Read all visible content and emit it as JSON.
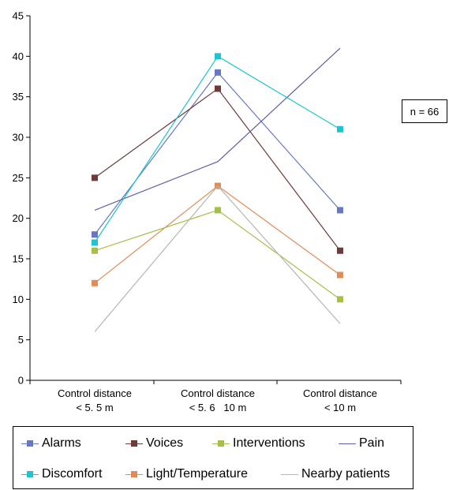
{
  "chart_data": {
    "type": "line",
    "categories": [
      [
        "Control distance",
        "< 5. 5 m"
      ],
      [
        "Control distance",
        "< 5. 6   10 m"
      ],
      [
        "Control distance",
        "< 10 m"
      ]
    ],
    "ylim": [
      0,
      45
    ],
    "yticks": [
      0,
      5,
      10,
      15,
      20,
      25,
      30,
      35,
      40,
      45
    ],
    "grid": false,
    "legend_position": "bottom",
    "annotation": "n = 66",
    "series": [
      {
        "name": "Alarms",
        "values": [
          18,
          38,
          21
        ],
        "color": "#6678c2",
        "marker": true
      },
      {
        "name": "Voices",
        "values": [
          25,
          36,
          16
        ],
        "color": "#6e3a3a",
        "marker": true
      },
      {
        "name": "Interventions",
        "values": [
          16,
          21,
          10
        ],
        "color": "#a6bf4a",
        "marker": true
      },
      {
        "name": "Pain",
        "values": [
          21,
          27,
          41
        ],
        "color": "#5f5ea6",
        "marker": false
      },
      {
        "name": "Discomfort",
        "values": [
          17,
          40,
          31
        ],
        "color": "#1fc4d0",
        "marker": true
      },
      {
        "name": "Light/Temperature",
        "values": [
          12,
          24,
          13
        ],
        "color": "#e08c57",
        "marker": true
      },
      {
        "name": "Nearby patients",
        "values": [
          6,
          24,
          7
        ],
        "color": "#b6b6b6",
        "marker": false
      }
    ]
  }
}
